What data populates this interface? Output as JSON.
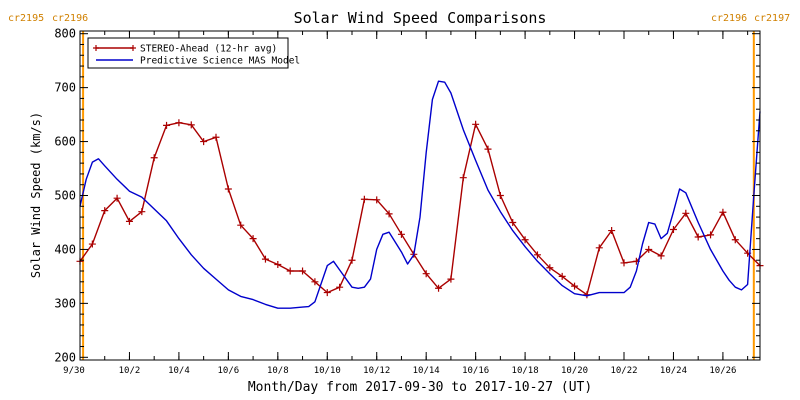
{
  "chart_data": {
    "type": "line",
    "title": "Solar Wind Speed Comparisons",
    "xlabel": "Month/Day from 2017-09-30 to 2017-10-27 (UT)",
    "ylabel": "Solar Wind Speed (km/s)",
    "xlim": [
      "2017-09-30T00:00",
      "2017-10-27T12:00"
    ],
    "ylim": [
      195,
      805
    ],
    "x_ticks": [
      "9/30",
      "10/2",
      "10/4",
      "10/6",
      "10/8",
      "10/10",
      "10/12",
      "10/14",
      "10/16",
      "10/18",
      "10/20",
      "10/22",
      "10/24",
      "10/26"
    ],
    "x_tick_dates": [
      "2017-09-30",
      "2017-10-02",
      "2017-10-04",
      "2017-10-06",
      "2017-10-08",
      "2017-10-10",
      "2017-10-12",
      "2017-10-14",
      "2017-10-16",
      "2017-10-18",
      "2017-10-20",
      "2017-10-22",
      "2017-10-24",
      "2017-10-26"
    ],
    "y_ticks": [
      "200",
      "300",
      "400",
      "500",
      "600",
      "700",
      "800"
    ],
    "y_tick_values": [
      200,
      300,
      400,
      500,
      600,
      700,
      800
    ],
    "legend_position": "top-left",
    "colors": {
      "stereo": "#aa0000",
      "mas": "#0000cc",
      "carrington": "#ff9900",
      "label": "#d08000"
    },
    "carrington": {
      "left": {
        "labels": [
          "cr2195",
          "cr2196"
        ],
        "date": "2017-09-30T03:00"
      },
      "right": {
        "labels": [
          "cr2196",
          "cr2197"
        ],
        "date": "2017-10-27T06:00"
      }
    },
    "series": [
      {
        "name": "STEREO-Ahead (12-hr avg)",
        "color": "#aa0000",
        "marker": "plus",
        "x": [
          "2017-09-30T00:00",
          "2017-09-30T12:00",
          "2017-10-01T00:00",
          "2017-10-01T12:00",
          "2017-10-02T00:00",
          "2017-10-02T12:00",
          "2017-10-03T00:00",
          "2017-10-03T12:00",
          "2017-10-04T00:00",
          "2017-10-04T12:00",
          "2017-10-05T00:00",
          "2017-10-05T12:00",
          "2017-10-06T00:00",
          "2017-10-06T12:00",
          "2017-10-07T00:00",
          "2017-10-07T12:00",
          "2017-10-08T00:00",
          "2017-10-08T12:00",
          "2017-10-09T00:00",
          "2017-10-09T12:00",
          "2017-10-10T00:00",
          "2017-10-10T12:00",
          "2017-10-11T00:00",
          "2017-10-11T12:00",
          "2017-10-12T00:00",
          "2017-10-12T12:00",
          "2017-10-13T00:00",
          "2017-10-13T12:00",
          "2017-10-14T00:00",
          "2017-10-14T12:00",
          "2017-10-15T00:00",
          "2017-10-15T12:00",
          "2017-10-16T00:00",
          "2017-10-16T12:00",
          "2017-10-17T00:00",
          "2017-10-17T12:00",
          "2017-10-18T00:00",
          "2017-10-18T12:00",
          "2017-10-19T00:00",
          "2017-10-19T12:00",
          "2017-10-20T00:00",
          "2017-10-20T12:00",
          "2017-10-21T00:00",
          "2017-10-21T12:00",
          "2017-10-22T00:00",
          "2017-10-22T12:00",
          "2017-10-23T00:00",
          "2017-10-23T12:00",
          "2017-10-24T00:00",
          "2017-10-24T12:00",
          "2017-10-25T00:00",
          "2017-10-25T12:00",
          "2017-10-26T00:00",
          "2017-10-26T12:00",
          "2017-10-27T00:00",
          "2017-10-27T12:00"
        ],
        "y": [
          378,
          410,
          472,
          495,
          452,
          470,
          570,
          630,
          635,
          631,
          600,
          608,
          512,
          445,
          420,
          382,
          372,
          360,
          360,
          340,
          320,
          330,
          380,
          493,
          492,
          466,
          428,
          391,
          355,
          328,
          345,
          533,
          632,
          586,
          500,
          450,
          418,
          390,
          366,
          350,
          332,
          316,
          403,
          435,
          375,
          378,
          400,
          388,
          437,
          467,
          423,
          427,
          469,
          418,
          393,
          370
        ]
      },
      {
        "name": "Predictive Science MAS Model",
        "color": "#0000cc",
        "marker": "none",
        "x": [
          "2017-09-30T00:00",
          "2017-09-30T06:00",
          "2017-09-30T12:00",
          "2017-09-30T18:00",
          "2017-10-01T00:00",
          "2017-10-01T12:00",
          "2017-10-02T00:00",
          "2017-10-02T12:00",
          "2017-10-03T00:00",
          "2017-10-03T12:00",
          "2017-10-04T00:00",
          "2017-10-04T12:00",
          "2017-10-05T00:00",
          "2017-10-05T12:00",
          "2017-10-06T00:00",
          "2017-10-06T12:00",
          "2017-10-07T00:00",
          "2017-10-07T12:00",
          "2017-10-08T00:00",
          "2017-10-08T12:00",
          "2017-10-09T00:00",
          "2017-10-09T06:00",
          "2017-10-09T12:00",
          "2017-10-10T00:00",
          "2017-10-10T06:00",
          "2017-10-10T12:00",
          "2017-10-11T00:00",
          "2017-10-11T06:00",
          "2017-10-11T12:00",
          "2017-10-11T18:00",
          "2017-10-12T00:00",
          "2017-10-12T06:00",
          "2017-10-12T12:00",
          "2017-10-13T00:00",
          "2017-10-13T06:00",
          "2017-10-13T12:00",
          "2017-10-13T18:00",
          "2017-10-14T00:00",
          "2017-10-14T06:00",
          "2017-10-14T12:00",
          "2017-10-14T18:00",
          "2017-10-15T00:00",
          "2017-10-15T12:00",
          "2017-10-16T00:00",
          "2017-10-16T12:00",
          "2017-10-17T00:00",
          "2017-10-17T12:00",
          "2017-10-18T00:00",
          "2017-10-18T12:00",
          "2017-10-19T00:00",
          "2017-10-19T12:00",
          "2017-10-20T00:00",
          "2017-10-20T12:00",
          "2017-10-21T00:00",
          "2017-10-21T12:00",
          "2017-10-22T00:00",
          "2017-10-22T06:00",
          "2017-10-22T12:00",
          "2017-10-22T18:00",
          "2017-10-23T00:00",
          "2017-10-23T06:00",
          "2017-10-23T12:00",
          "2017-10-23T18:00",
          "2017-10-24T00:00",
          "2017-10-24T06:00",
          "2017-10-24T12:00",
          "2017-10-25T00:00",
          "2017-10-25T12:00",
          "2017-10-26T00:00",
          "2017-10-26T06:00",
          "2017-10-26T12:00",
          "2017-10-26T18:00",
          "2017-10-27T00:00",
          "2017-10-27T06:00",
          "2017-10-27T12:00"
        ],
        "y": [
          480,
          530,
          562,
          568,
          555,
          530,
          508,
          497,
          475,
          453,
          420,
          390,
          365,
          345,
          325,
          313,
          307,
          298,
          291,
          291,
          293,
          294,
          303,
          370,
          378,
          362,
          330,
          328,
          330,
          345,
          400,
          428,
          432,
          395,
          373,
          390,
          460,
          580,
          678,
          712,
          710,
          690,
          622,
          565,
          510,
          470,
          435,
          405,
          378,
          355,
          333,
          318,
          314,
          320,
          320,
          320,
          330,
          360,
          410,
          450,
          447,
          420,
          430,
          470,
          512,
          505,
          450,
          400,
          360,
          343,
          330,
          325,
          335,
          500,
          656
        ]
      }
    ]
  }
}
